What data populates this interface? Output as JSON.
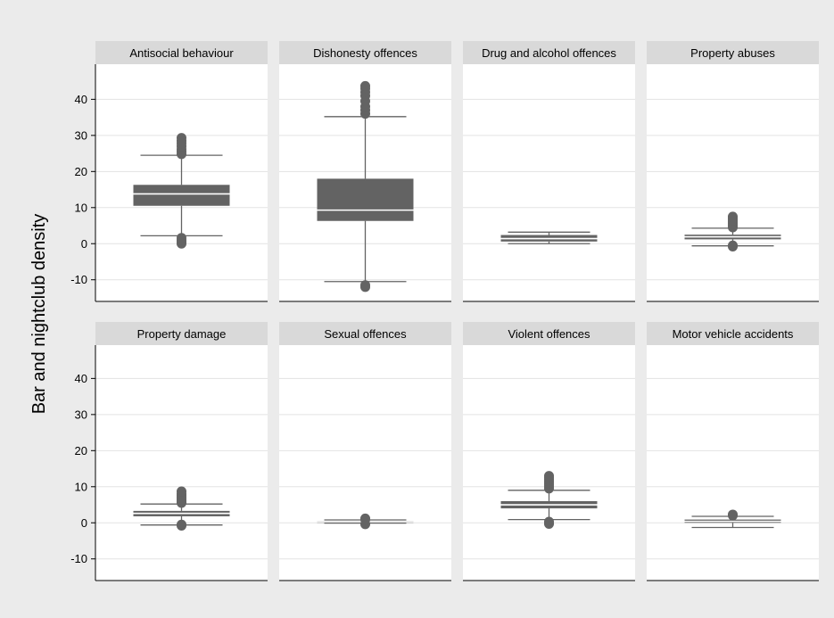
{
  "chart_data": {
    "type": "boxplot",
    "ylabel": "Bar and nightclub density",
    "ylim": [
      -16,
      48
    ],
    "yticks": [
      -10,
      0,
      10,
      20,
      30,
      40
    ],
    "grid": true,
    "layout": {
      "rows": 2,
      "cols": 4
    },
    "colors": {
      "box": "#636363",
      "median": "#ffffff",
      "panel_bg": "#ffffff",
      "strip_bg": "#d9d9d9",
      "outer_bg": "#ebebeb",
      "grid": "#e3e3e3"
    },
    "panels": [
      {
        "name": "Antisocial behaviour",
        "whisker_low": 2.2,
        "q1": 10.5,
        "median": 13.8,
        "q3": 16.3,
        "whisker_high": 24.5,
        "outliers": [
          0,
          0.5,
          1,
          1.6,
          24.8,
          25.5,
          26.2,
          27,
          27.8,
          28.5,
          29.3
        ]
      },
      {
        "name": "Dishonesty offences",
        "whisker_low": -10.5,
        "q1": 6.3,
        "median": 9.3,
        "q3": 18,
        "whisker_high": 35.2,
        "outliers": [
          -12,
          -11.5,
          36,
          37,
          38,
          39.5,
          41,
          42,
          43,
          43.7
        ]
      },
      {
        "name": "Drug and alcohol offences",
        "whisker_low": 0,
        "q1": 0.6,
        "median": 1.4,
        "q3": 2.4,
        "whisker_high": 3.2,
        "outliers": []
      },
      {
        "name": "Property abuses",
        "whisker_low": -0.6,
        "q1": 1.2,
        "median": 1.9,
        "q3": 2.5,
        "whisker_high": 4.3,
        "outliers": [
          -0.8,
          -0.5,
          4.5,
          5,
          5.5,
          6,
          6.5,
          7,
          7.5
        ]
      },
      {
        "name": "Property damage",
        "whisker_low": -0.6,
        "q1": 1.8,
        "median": 2.6,
        "q3": 3.3,
        "whisker_high": 5.2,
        "outliers": [
          -0.8,
          -0.5,
          5.5,
          6,
          6.5,
          7,
          7.5,
          8,
          8.7
        ]
      },
      {
        "name": "Sexual offences",
        "whisker_low": -0.1,
        "q1": 0.1,
        "median": 0.3,
        "q3": 0.5,
        "whisker_high": 0.8,
        "outliers": [
          -0.4,
          0.9,
          1.2
        ]
      },
      {
        "name": "Violent offences",
        "whisker_low": 0.9,
        "q1": 4,
        "median": 5,
        "q3": 6,
        "whisker_high": 9,
        "outliers": [
          -0.3,
          0,
          0.3,
          9.5,
          10,
          10.5,
          11,
          11.5,
          12,
          12.5,
          13
        ]
      },
      {
        "name": "Motor vehicle accidents",
        "whisker_low": -1.3,
        "q1": 0,
        "median": 0.4,
        "q3": 0.9,
        "whisker_high": 1.8,
        "outliers": [
          2,
          2.3
        ]
      }
    ]
  }
}
